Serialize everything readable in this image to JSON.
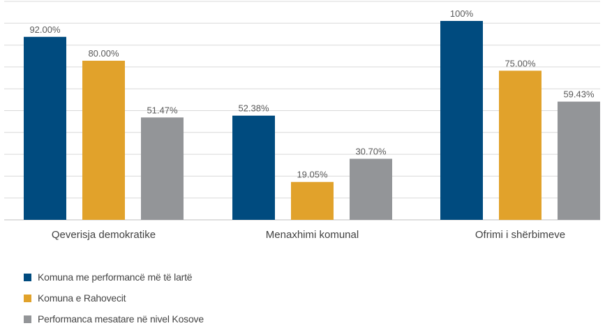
{
  "chart_data": {
    "type": "bar",
    "categories": [
      "Qeverisja demokratike",
      "Menaxhimi komunal",
      "Ofrimi i shërbimeve"
    ],
    "series": [
      {
        "name": "Komuna me performancë më të lartë",
        "color": "#004b7f",
        "values": [
          92.0,
          52.38,
          100
        ],
        "labels": [
          "92.00%",
          "52.38%",
          "100%"
        ]
      },
      {
        "name": "Komuna e Rahovecit",
        "color": "#e1a22b",
        "values": [
          80.0,
          19.05,
          75.0
        ],
        "labels": [
          "80.00%",
          "19.05%",
          "75.00%"
        ]
      },
      {
        "name": "Performanca mesatare në nivel Kosove",
        "color": "#939598",
        "values": [
          51.47,
          30.7,
          59.43
        ],
        "labels": [
          "51.47%",
          "30.70%",
          "59.43%"
        ]
      }
    ],
    "ylim": [
      0,
      100
    ],
    "grid": true,
    "legend_position": "bottom-left"
  }
}
